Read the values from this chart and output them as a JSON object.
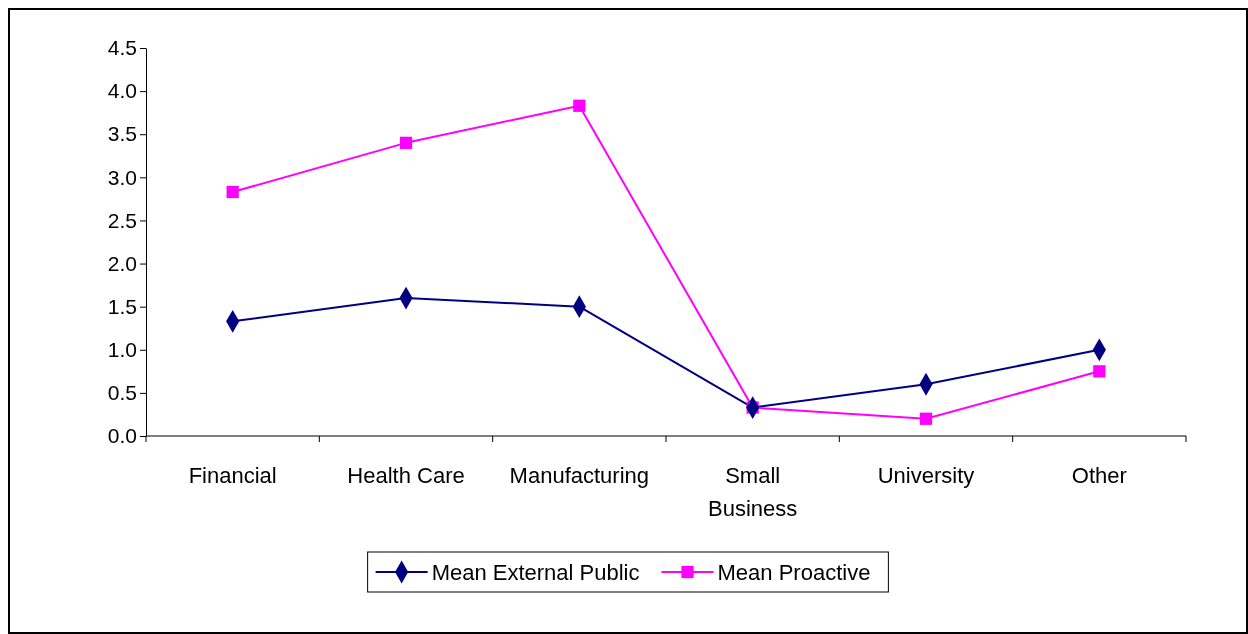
{
  "chart_data": {
    "type": "line",
    "categories": [
      "Financial",
      "Health Care",
      "Manufacturing",
      "Small Business",
      "University",
      "Other"
    ],
    "series": [
      {
        "name": "Mean External Public",
        "color": "#000080",
        "values": [
          1.33,
          1.6,
          1.5,
          0.33,
          0.6,
          1.0
        ],
        "marker": "diamond"
      },
      {
        "name": "Mean Proactive",
        "color": "#ff00ff",
        "values": [
          2.83,
          3.4,
          3.83,
          0.33,
          0.2,
          0.75
        ],
        "marker": "square"
      }
    ],
    "ylim": [
      0,
      4.5
    ],
    "yticks": [
      {
        "value": 0,
        "label": "0.0"
      },
      {
        "value": 0.5,
        "label": "0.5"
      },
      {
        "value": 1,
        "label": "1.0"
      },
      {
        "value": 1.5,
        "label": "1.5"
      },
      {
        "value": 2,
        "label": "2.0"
      },
      {
        "value": 2.5,
        "label": "2.5"
      },
      {
        "value": 3,
        "label": "3.0"
      },
      {
        "value": 3.5,
        "label": "3.5"
      },
      {
        "value": 4,
        "label": "4.0"
      },
      {
        "value": 4.5,
        "label": "4.5"
      }
    ],
    "grid": false,
    "legend": "bottom",
    "line_style": "solid"
  }
}
